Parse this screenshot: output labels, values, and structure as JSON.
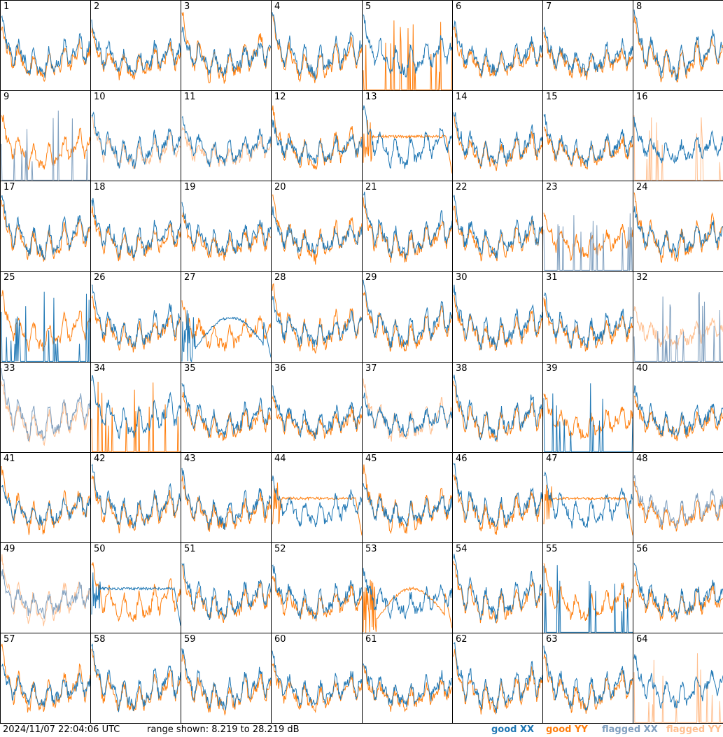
{
  "chart_data": {
    "type": "line",
    "grid": "8x8 small multiples",
    "panel_labels": [
      "1",
      "2",
      "3",
      "4",
      "5",
      "6",
      "7",
      "8",
      "9",
      "10",
      "11",
      "12",
      "13",
      "14",
      "15",
      "16",
      "17",
      "18",
      "19",
      "20",
      "21",
      "22",
      "23",
      "24",
      "25",
      "26",
      "27",
      "28",
      "29",
      "30",
      "31",
      "32",
      "33",
      "34",
      "35",
      "36",
      "37",
      "38",
      "39",
      "40",
      "41",
      "42",
      "43",
      "44",
      "45",
      "46",
      "47",
      "48",
      "49",
      "50",
      "51",
      "52",
      "53",
      "54",
      "55",
      "56",
      "57",
      "58",
      "59",
      "60",
      "61",
      "62",
      "63",
      "64"
    ],
    "series_names": [
      "good XX",
      "good YY",
      "flagged XX",
      "flagged YY"
    ],
    "colors": {
      "good_xx": "#1f77b4",
      "good_yy": "#ff7f0e",
      "flagged_xx": "#7f9fbf",
      "flagged_yy": "#ffbf8f"
    },
    "y_range_db": [
      8.219,
      28.219
    ],
    "panel_status": {
      "9": {
        "xx": "flagged"
      },
      "10": {
        "yy": "flagged"
      },
      "11": {
        "yy": "flagged"
      },
      "16": {
        "yy": "flagged"
      },
      "23": {
        "xx": "flagged"
      },
      "32": {
        "xx": "flagged",
        "yy": "flagged"
      },
      "33": {
        "xx": "flagged",
        "yy": "flagged"
      },
      "37": {
        "yy": "flagged"
      },
      "48": {
        "xx": "flagged"
      },
      "49": {
        "xx": "flagged",
        "yy": "flagged"
      },
      "64": {
        "yy": "flagged"
      }
    }
  },
  "footer": {
    "timestamp": "2024/11/07 22:04:06 UTC",
    "range_text": "range shown: 8.219 to 28.219 dB",
    "legend": [
      {
        "label": "good XX",
        "color": "#1f77b4"
      },
      {
        "label": "good YY",
        "color": "#ff7f0e"
      },
      {
        "label": "flagged XX",
        "color": "#7f9fbf"
      },
      {
        "label": "flagged YY",
        "color": "#ffbf8f"
      }
    ]
  }
}
